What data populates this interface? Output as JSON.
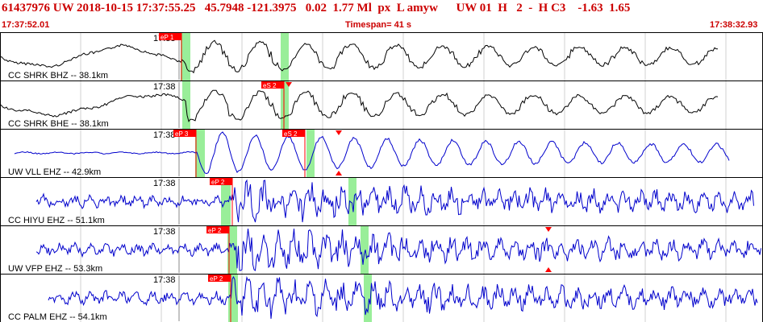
{
  "header": {
    "title_line": "61437976 UW 2018-10-15 17:37:55.25   45.7948 -121.3975   0.02  1.77 Ml  px  L amyw      UW 01  H   2  -  H C3    -1.63  1.65",
    "start_time": "17:37:52.01",
    "timespan_label": "Timespan=  41 s",
    "end_time": "17:38:32.93"
  },
  "colors": {
    "header_red": "#cc0000",
    "trace_black": "#000000",
    "trace_blue": "#0000cc",
    "pick_red": "#ff0000",
    "window_green": "#99ee99"
  },
  "tick_label": "17:38",
  "traces": [
    {
      "label": "CC SHRK BHZ -- 38.1km",
      "pick_label": "eP 1",
      "color": "black",
      "amp_markers": false
    },
    {
      "label": "CC SHRK BHE -- 38.1km",
      "pick_label": "eS 2",
      "color": "black",
      "amp_markers": true
    },
    {
      "label": "UW VLL EHZ -- 42.9km",
      "pick_label": "eP 3",
      "pick2_label": "eS 2",
      "color": "blue",
      "amp_markers": true
    },
    {
      "label": "CC HIYU EHZ -- 51.1km",
      "pick_label": "eP 2",
      "color": "blue",
      "amp_markers": false
    },
    {
      "label": "UW VFP EHZ -- 53.3km",
      "pick_label": "eP 2",
      "color": "blue",
      "amp_markers": true
    },
    {
      "label": "CC PALM EHZ -- 54.1km",
      "pick_label": "eP 2",
      "color": "blue",
      "amp_markers": false
    }
  ]
}
